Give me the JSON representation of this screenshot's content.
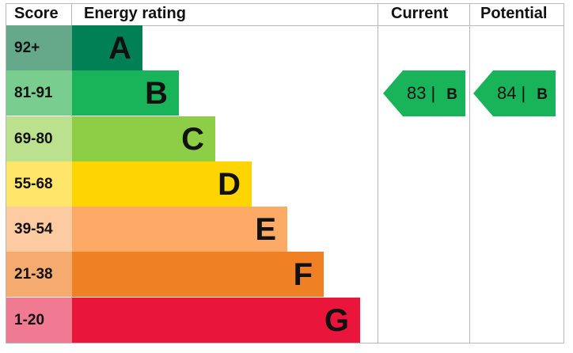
{
  "chart_data": {
    "type": "table",
    "columns": [
      "Score",
      "Energy rating",
      "Current",
      "Potential"
    ],
    "bands": [
      {
        "letter": "A",
        "range": "92+",
        "color": "#008054",
        "score_color": "#66a98a"
      },
      {
        "letter": "B",
        "range": "81-91",
        "color": "#19b459",
        "score_color": "#79cd8e"
      },
      {
        "letter": "C",
        "range": "69-80",
        "color": "#8dce46",
        "score_color": "#bbe18f"
      },
      {
        "letter": "D",
        "range": "55-68",
        "color": "#ffd500",
        "score_color": "#ffe66b"
      },
      {
        "letter": "E",
        "range": "39-54",
        "color": "#fcaa65",
        "score_color": "#fdcba2"
      },
      {
        "letter": "F",
        "range": "21-38",
        "color": "#ef8023",
        "score_color": "#f5ab70"
      },
      {
        "letter": "G",
        "range": "1-20",
        "color": "#e9153b",
        "score_color": "#f07a92"
      }
    ],
    "current": {
      "value": "83",
      "separator": "|",
      "band": "B",
      "color": "#19b459"
    },
    "potential": {
      "value": "84",
      "separator": "|",
      "band": "B",
      "color": "#19b459"
    }
  }
}
